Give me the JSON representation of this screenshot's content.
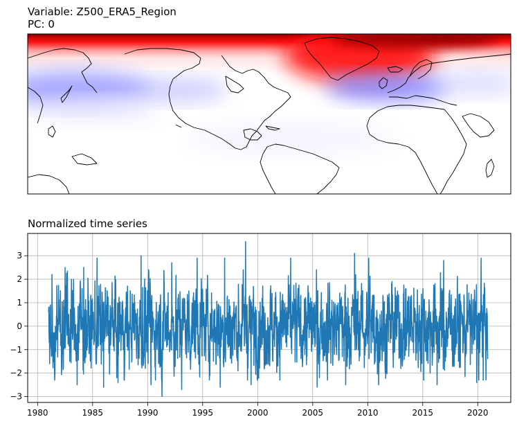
{
  "map_panel": {
    "variable_title": "Variable: Z500_ERA5_Region",
    "pc_title": "PC: 0",
    "colormap": "bwr",
    "coastline_color": "#000000",
    "coastlines": "visible",
    "features": [
      {
        "name": "arctic-high-anomaly",
        "color": "red"
      },
      {
        "name": "greenland-high-anomaly",
        "color": "red"
      },
      {
        "name": "north-pacific-low-anomaly",
        "color": "blue"
      },
      {
        "name": "north-atlantic-low-anomaly",
        "color": "blue"
      }
    ]
  },
  "chart_data": {
    "type": "line",
    "title": "Normalized time series",
    "xlabel": "",
    "ylabel": "",
    "xlim": [
      1979.1,
      2023.0
    ],
    "ylim": [
      -3.25,
      3.95
    ],
    "x_ticks": [
      1980,
      1985,
      1990,
      1995,
      2000,
      2005,
      2010,
      2015,
      2020
    ],
    "y_ticks": [
      -3,
      -2,
      -1,
      0,
      1,
      2,
      3
    ],
    "grid": true,
    "line_color": "#1f77b4",
    "series": [
      {
        "x_start": 1981.0,
        "x_end": 2020.9,
        "extremes": [
          {
            "x": 1981.1,
            "y": -1.6
          },
          {
            "x": 1981.3,
            "y": 2.2
          },
          {
            "x": 1982.5,
            "y": 2.5
          },
          {
            "x": 1983.6,
            "y": -2.5
          },
          {
            "x": 1984.2,
            "y": 2.5
          },
          {
            "x": 1985.4,
            "y": 2.9
          },
          {
            "x": 1986.0,
            "y": -2.6
          },
          {
            "x": 1987.3,
            "y": -2.4
          },
          {
            "x": 1989.4,
            "y": 3.0
          },
          {
            "x": 1990.3,
            "y": -2.5
          },
          {
            "x": 1991.3,
            "y": -3.0
          },
          {
            "x": 1992.2,
            "y": 2.7
          },
          {
            "x": 1993.1,
            "y": -2.7
          },
          {
            "x": 1994.5,
            "y": 2.9
          },
          {
            "x": 1996.6,
            "y": -2.6
          },
          {
            "x": 1997.0,
            "y": 2.9
          },
          {
            "x": 1998.9,
            "y": 3.6
          },
          {
            "x": 1999.4,
            "y": -2.5
          },
          {
            "x": 2003.0,
            "y": 2.9
          },
          {
            "x": 2005.4,
            "y": -2.6
          },
          {
            "x": 2008.0,
            "y": -2.5
          },
          {
            "x": 2008.8,
            "y": 3.1
          },
          {
            "x": 2010.1,
            "y": 2.9
          },
          {
            "x": 2011.0,
            "y": -2.5
          },
          {
            "x": 2016.3,
            "y": -2.5
          },
          {
            "x": 2016.9,
            "y": 2.8
          },
          {
            "x": 2019.9,
            "y": -2.4
          },
          {
            "x": 2020.3,
            "y": 2.9
          },
          {
            "x": 2020.9,
            "y": -1.4
          }
        ]
      }
    ]
  }
}
